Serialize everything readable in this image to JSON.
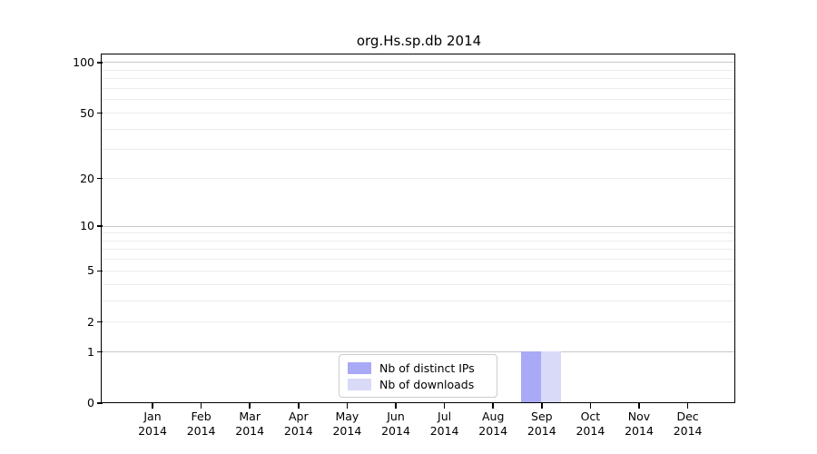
{
  "title": "org.Hs.sp.db 2014",
  "chart_data": {
    "type": "bar",
    "scale": "log1p",
    "title": "org.Hs.sp.db 2014",
    "xlabel": "",
    "ylabel": "",
    "ylim": [
      0,
      100
    ],
    "grid": true,
    "legend_position": "bottom-center",
    "categories": [
      {
        "month": "Jan",
        "year": "2014"
      },
      {
        "month": "Feb",
        "year": "2014"
      },
      {
        "month": "Mar",
        "year": "2014"
      },
      {
        "month": "Apr",
        "year": "2014"
      },
      {
        "month": "May",
        "year": "2014"
      },
      {
        "month": "Jun",
        "year": "2014"
      },
      {
        "month": "Jul",
        "year": "2014"
      },
      {
        "month": "Aug",
        "year": "2014"
      },
      {
        "month": "Sep",
        "year": "2014"
      },
      {
        "month": "Oct",
        "year": "2014"
      },
      {
        "month": "Nov",
        "year": "2014"
      },
      {
        "month": "Dec",
        "year": "2014"
      }
    ],
    "series": [
      {
        "name": "Nb of distinct IPs",
        "color": "#a9a9f6",
        "values": [
          0,
          0,
          0,
          0,
          0,
          0,
          0,
          0,
          1,
          0,
          0,
          0
        ]
      },
      {
        "name": "Nb of downloads",
        "color": "#d9d9f8",
        "values": [
          0,
          0,
          0,
          0,
          0,
          0,
          0,
          0,
          1,
          0,
          0,
          0
        ]
      }
    ],
    "y_ticks": [
      0,
      1,
      2,
      5,
      10,
      20,
      50,
      100
    ],
    "grid_major_values": [
      1,
      10,
      100
    ],
    "grid_minor_values": [
      2,
      3,
      4,
      5,
      6,
      7,
      8,
      9,
      20,
      30,
      40,
      50,
      60,
      70,
      80,
      90
    ]
  },
  "colors": {
    "grid_major": "#c8c8c8",
    "grid_minor": "#ececec",
    "spine": "#000000",
    "legend_border": "#cccccc",
    "background": "#ffffff",
    "text": "#000000"
  }
}
